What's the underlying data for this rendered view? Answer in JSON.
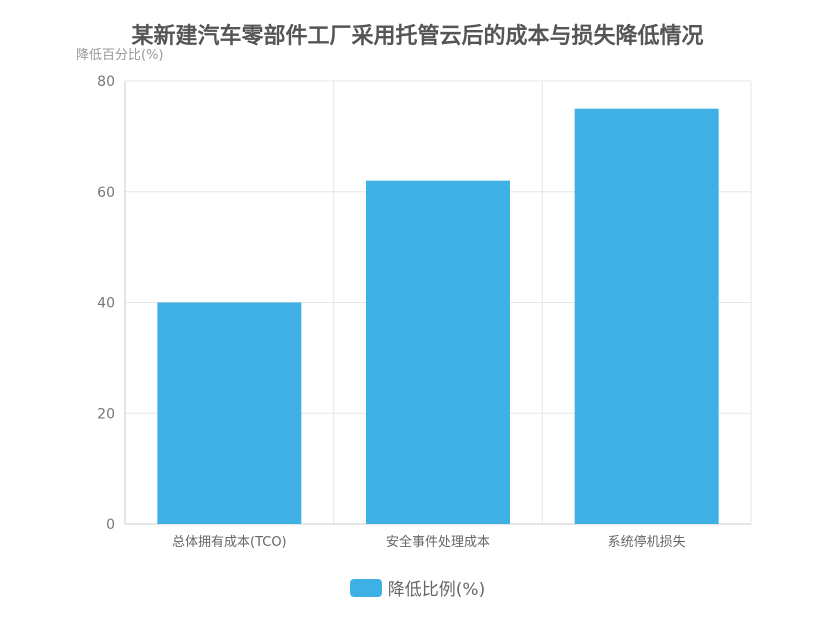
{
  "chart_data": {
    "type": "bar",
    "title": "某新建汽车零部件工厂采用托管云后的成本与损失降低情况",
    "ylabel": "降低百分比(%)",
    "xlabel": "",
    "categories": [
      "总体拥有成本(TCO)",
      "安全事件处理成本",
      "系统停机损失"
    ],
    "series": [
      {
        "name": "降低比例(%)",
        "values": [
          40,
          62,
          75
        ],
        "color": "#3eb0e4"
      }
    ],
    "ylim": [
      0,
      80
    ],
    "yticks": [
      0,
      20,
      40,
      60,
      80
    ],
    "grid": true,
    "legend_position": "bottom-center"
  }
}
